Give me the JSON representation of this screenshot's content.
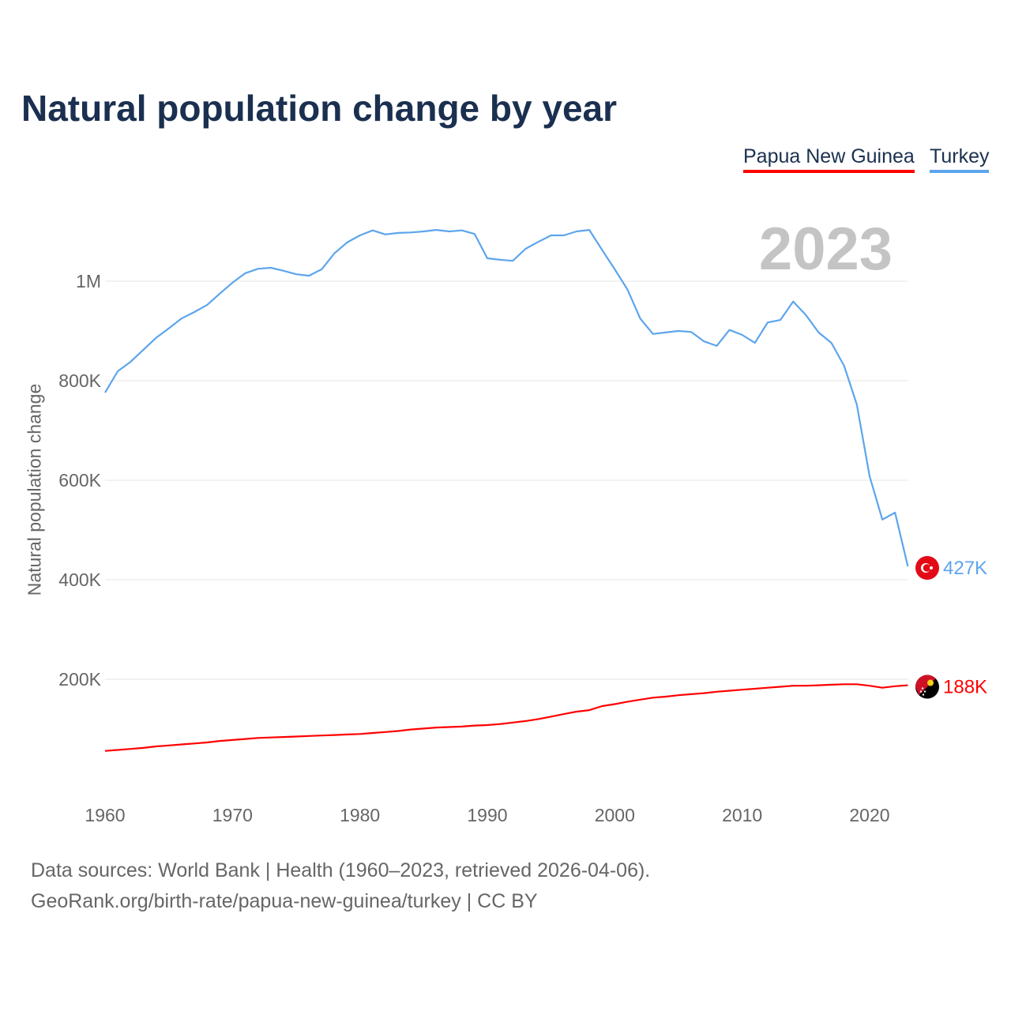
{
  "title": "Natural population change by year",
  "legend": [
    {
      "name": "Papua New Guinea",
      "color": "#ff0000"
    },
    {
      "name": "Turkey",
      "color": "#5da5ec"
    }
  ],
  "year_display": "2023",
  "sources": [
    "Data sources: World Bank | Health (1960–2023, retrieved 2026-04-06).",
    "GeoRank.org/birth-rate/papua-new-guinea/turkey | CC BY"
  ],
  "chart_data": {
    "type": "line",
    "title": "Natural population change by year",
    "xlabel": "",
    "ylabel": "Natural population change",
    "xlim": [
      1960,
      2023
    ],
    "ylim": [
      0,
      1150000
    ],
    "grid": true,
    "legend_placement": "top-right",
    "x_ticks": [
      1960,
      1970,
      1980,
      1990,
      2000,
      2010,
      2020
    ],
    "y_ticks": [
      {
        "v": 200000,
        "label": "200K"
      },
      {
        "v": 400000,
        "label": "400K"
      },
      {
        "v": 600000,
        "label": "600K"
      },
      {
        "v": 800000,
        "label": "800K"
      },
      {
        "v": 1000000,
        "label": "1M"
      }
    ],
    "x_start": 1960,
    "series": [
      {
        "name": "Turkey",
        "color": "#5da5ec",
        "end_label": "427K",
        "flag": "turkey-flag-icon",
        "values": [
          776000,
          819000,
          838000,
          862000,
          886000,
          905000,
          925000,
          938000,
          952000,
          975000,
          997000,
          1016000,
          1025000,
          1027000,
          1021000,
          1014000,
          1011000,
          1024000,
          1056000,
          1078000,
          1092000,
          1102000,
          1094000,
          1097000,
          1098000,
          1100000,
          1103000,
          1100000,
          1102000,
          1095000,
          1046000,
          1043000,
          1041000,
          1065000,
          1079000,
          1092000,
          1092000,
          1100000,
          1103000,
          1063000,
          1024000,
          983000,
          925000,
          894000,
          897000,
          900000,
          898000,
          879000,
          870000,
          902000,
          892000,
          876000,
          917000,
          922000,
          959000,
          932000,
          897000,
          876000,
          830000,
          752000,
          608000,
          521000,
          535000,
          427000
        ]
      },
      {
        "name": "Papua New Guinea",
        "color": "#ff0000",
        "end_label": "188K",
        "flag": "png-flag-icon",
        "values": [
          56000,
          58000,
          60000,
          62000,
          65000,
          67000,
          69000,
          71000,
          73000,
          76000,
          78000,
          80000,
          82000,
          83000,
          84000,
          85000,
          86000,
          87000,
          88000,
          89000,
          90000,
          92000,
          94000,
          96000,
          99000,
          101000,
          103000,
          104000,
          105000,
          107000,
          108000,
          110000,
          113000,
          116000,
          120000,
          125000,
          130000,
          135000,
          138000,
          146000,
          150000,
          155000,
          159000,
          163000,
          165000,
          168000,
          170000,
          172000,
          175000,
          177000,
          179000,
          181000,
          183000,
          185000,
          187000,
          187000,
          188000,
          189000,
          190000,
          190000,
          187000,
          183000,
          186000,
          188000
        ]
      }
    ]
  }
}
